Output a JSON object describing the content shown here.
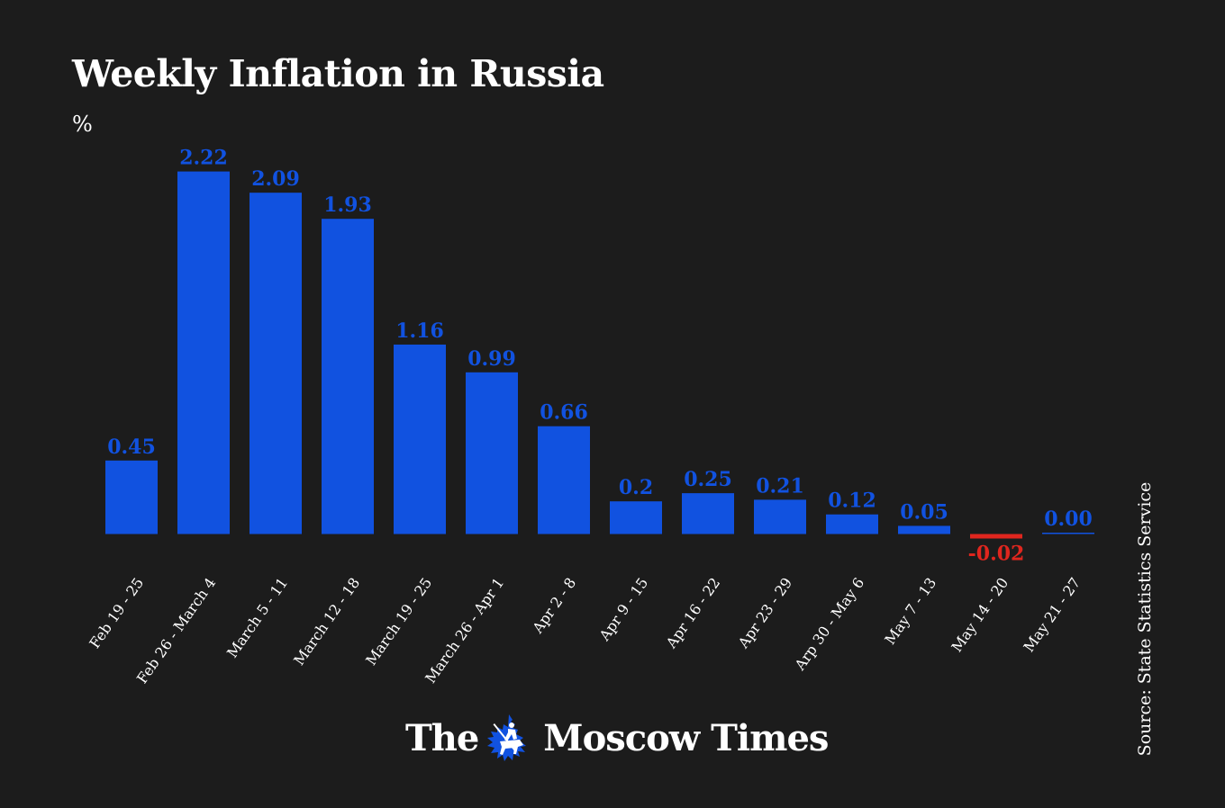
{
  "title": "Weekly Inflation in Russia",
  "unit": "%",
  "source": "Source: State Statistics Service",
  "logo": {
    "text_left": "The",
    "text_right": "Moscow Times",
    "emblem_icon": "st-george-emblem-icon"
  },
  "colors": {
    "background": "#1c1c1c",
    "positive": "#1152e0",
    "negative": "#e0261e",
    "text": "#ffffff"
  },
  "chart_data": {
    "type": "bar",
    "title": "Weekly Inflation in Russia",
    "ylabel": "%",
    "xlabel": "",
    "grid": false,
    "categories": [
      "Feb 19 - 25",
      "Feb 26 - March 4",
      "March 5 - 11",
      "March 12 - 18",
      "March 19 - 25",
      "March 26 - Apr 1",
      "Apr 2 - 8",
      "Apr 9 - 15",
      "Apr 16 - 22",
      "Apr 23 - 29",
      "Arp 30 - May 6",
      "May 7 - 13",
      "May 14 - 20",
      "May 21 - 27"
    ],
    "values": [
      0.45,
      2.22,
      2.09,
      1.93,
      1.16,
      0.99,
      0.66,
      0.2,
      0.25,
      0.21,
      0.12,
      0.05,
      -0.02,
      0.0
    ],
    "value_labels": [
      "0.45",
      "2.22",
      "2.09",
      "1.93",
      "1.16",
      "0.99",
      "0.66",
      "0.2",
      "0.25",
      "0.21",
      "0.12",
      "0.05",
      "-0.02",
      "0.00"
    ]
  }
}
